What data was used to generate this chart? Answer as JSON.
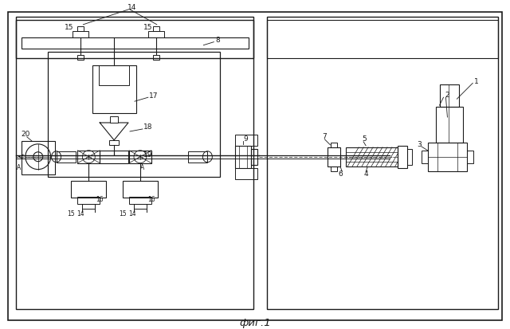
{
  "background_color": "#ffffff",
  "line_color": "#1a1a1a",
  "fig_width": 6.4,
  "fig_height": 4.13,
  "title": "фиг.1"
}
